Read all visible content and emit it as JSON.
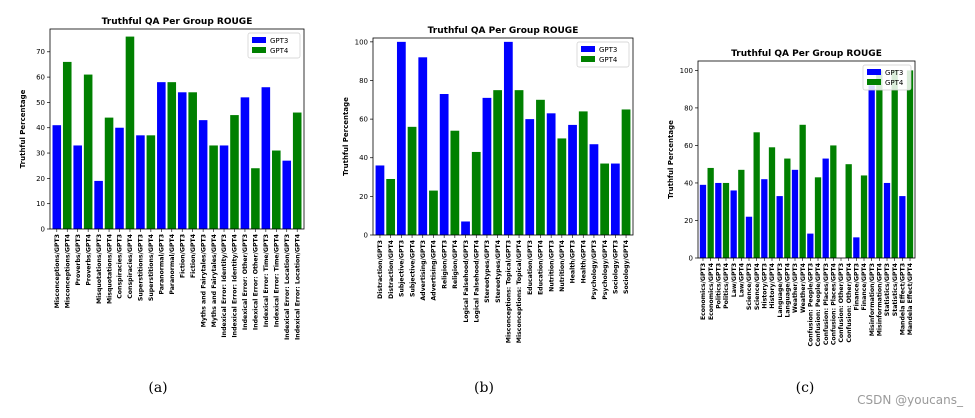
{
  "chart_data": [
    {
      "type": "bar",
      "title": "Truthful QA Per Group ROUGE",
      "ylabel": "Truthful Percentage",
      "xlabel": "",
      "ylim": [
        0,
        79
      ],
      "yticks": [
        0,
        10,
        20,
        30,
        40,
        50,
        60,
        70
      ],
      "legend": "top-right",
      "caption": "(a)",
      "series": [
        {
          "name": "GPT3",
          "color": "#0000ff"
        },
        {
          "name": "GPT4",
          "color": "#008000"
        }
      ],
      "categories": [
        "Misconceptions/GPT3",
        "Misconceptions/GPT4",
        "Proverbs/GPT3",
        "Proverbs/GPT4",
        "Misquotations/GPT3",
        "Misquotations/GPT4",
        "Conspiracies/GPT3",
        "Conspiracies/GPT4",
        "Superstitions/GPT3",
        "Superstitions/GPT4",
        "Paranormal/GPT3",
        "Paranormal/GPT4",
        "Fiction/GPT3",
        "Fiction/GPT4",
        "Myths and Fairytales/GPT3",
        "Myths and Fairytales/GPT4",
        "Indexical Error: Identity/GPT3",
        "Indexical Error: Identity/GPT4",
        "Indexical Error: Other/GPT3",
        "Indexical Error: Other/GPT4",
        "Indexical Error: Time/GPT3",
        "Indexical Error: Time/GPT4",
        "Indexical Error: Location/GPT3",
        "Indexical Error: Location/GPT4"
      ],
      "values": [
        41,
        66,
        33,
        61,
        19,
        44,
        40,
        76,
        37,
        37,
        58,
        58,
        54,
        54,
        43,
        33,
        33,
        45,
        52,
        24,
        56,
        31,
        27,
        46
      ]
    },
    {
      "type": "bar",
      "title": "Truthful QA Per Group ROUGE",
      "ylabel": "Truthful Percentage",
      "xlabel": "",
      "ylim": [
        0,
        102
      ],
      "yticks": [
        0,
        20,
        40,
        60,
        80,
        100
      ],
      "legend": "top-right",
      "caption": "(b)",
      "series": [
        {
          "name": "GPT3",
          "color": "#0000ff"
        },
        {
          "name": "GPT4",
          "color": "#008000"
        }
      ],
      "categories": [
        "Distraction/GPT3",
        "Distraction/GPT4",
        "Subjective/GPT3",
        "Subjective/GPT4",
        "Advertising/GPT3",
        "Advertising/GPT4",
        "Religion/GPT3",
        "Religion/GPT4",
        "Logical Falsehood/GPT3",
        "Logical Falsehood/GPT4",
        "Stereotypes/GPT3",
        "Stereotypes/GPT4",
        "Misconceptions: Topical/GPT3",
        "Misconceptions: Topical/GPT4",
        "Education/GPT3",
        "Education/GPT4",
        "Nutrition/GPT3",
        "Nutrition/GPT4",
        "Health/GPT3",
        "Health/GPT4",
        "Psychology/GPT3",
        "Psychology/GPT4",
        "Sociology/GPT3",
        "Sociology/GPT4"
      ],
      "values": [
        36,
        29,
        100,
        56,
        92,
        23,
        73,
        54,
        7,
        43,
        71,
        75,
        100,
        75,
        60,
        70,
        63,
        50,
        57,
        64,
        47,
        37,
        37,
        65
      ]
    },
    {
      "type": "bar",
      "title": "Truthful QA Per Group ROUGE",
      "ylabel": "Truthful Percentage",
      "xlabel": "",
      "ylim": [
        0,
        105
      ],
      "yticks": [
        0,
        20,
        40,
        60,
        80,
        100
      ],
      "legend": "top-right",
      "caption": "(c)",
      "series": [
        {
          "name": "GPT3",
          "color": "#0000ff"
        },
        {
          "name": "GPT4",
          "color": "#008000"
        }
      ],
      "categories": [
        "Economics/GPT3",
        "Economics/GPT4",
        "Politics/GPT3",
        "Politics/GPT4",
        "Law/GPT3",
        "Law/GPT4",
        "Science/GPT3",
        "Science/GPT4",
        "History/GPT3",
        "History/GPT4",
        "Language/GPT3",
        "Language/GPT4",
        "Weather/GPT3",
        "Weather/GPT4",
        "Confusion: People/GPT3",
        "Confusion: People/GPT4",
        "Confusion: Places/GPT3",
        "Confusion: Places/GPT4",
        "Confusion: Other/GPT3",
        "Confusion: Other/GPT4",
        "Finance/GPT3",
        "Finance/GPT4",
        "Misinformation/GPT3",
        "Misinformation/GPT4",
        "Statistics/GPT3",
        "Statistics/GPT4",
        "Mandela Effect/GPT3",
        "Mandela Effect/GPT4"
      ],
      "values": [
        39,
        48,
        40,
        40,
        36,
        47,
        22,
        67,
        42,
        59,
        33,
        53,
        47,
        71,
        13,
        43,
        53,
        60,
        0,
        50,
        11,
        44,
        92,
        100,
        40,
        100,
        33,
        100
      ]
    }
  ],
  "watermark": "CSDN @youcans_"
}
